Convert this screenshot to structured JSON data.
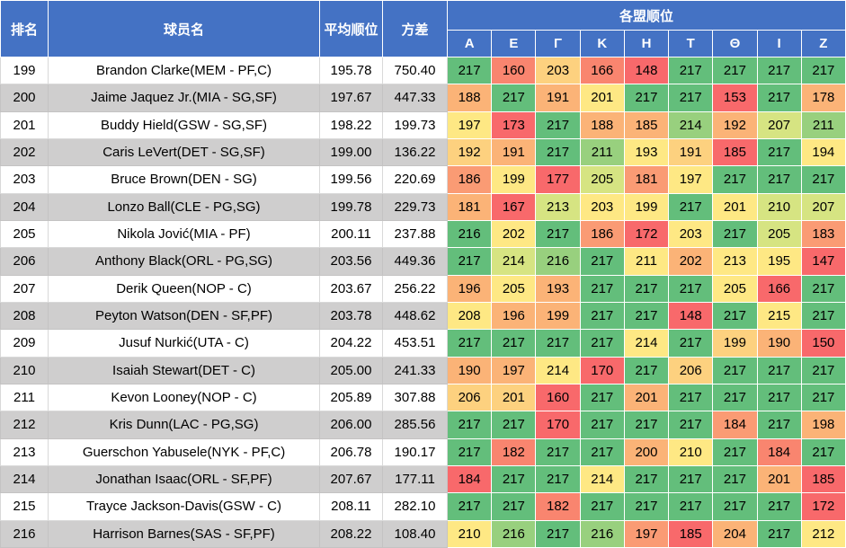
{
  "chart_data": {
    "type": "table",
    "title": "各盟顺位 player ranking heatmap table",
    "header": {
      "rank": "排名",
      "player": "球员名",
      "avg": "平均顺位",
      "variance": "方差",
      "leagues_group": "各盟顺位",
      "leagues": [
        "A",
        "E",
        "Γ",
        "K",
        "H",
        "T",
        "Θ",
        "I",
        "Z"
      ]
    },
    "colors": {
      "header_bg": "#4472C4",
      "header_text": "#FFFFFF",
      "row_bg": "#FFFFFF",
      "row_alt_bg": "#CFCECE",
      "grid_line": "#D9D9D9",
      "heat_border": "#FFFFFF",
      "text": "#000000"
    },
    "palette": {
      "g": "#63BE7B",
      "lg": "#98D07E",
      "yg": "#D6E482",
      "y": "#FEE884",
      "yo": "#FDD17F",
      "o": "#FBB377",
      "do": "#FA9B74",
      "s": "#F9856F",
      "r": "#F8696B"
    },
    "rows": [
      {
        "rank": "199",
        "player": "Brandon Clarke(MEM - PF,C)",
        "avg": "195.78",
        "variance": "750.40",
        "cells": [
          [
            217,
            "g"
          ],
          [
            160,
            "s"
          ],
          [
            203,
            "yo"
          ],
          [
            166,
            "s"
          ],
          [
            148,
            "r"
          ],
          [
            217,
            "g"
          ],
          [
            217,
            "g"
          ],
          [
            217,
            "g"
          ],
          [
            217,
            "g"
          ]
        ]
      },
      {
        "rank": "200",
        "player": "Jaime Jaquez Jr.(MIA - SG,SF)",
        "avg": "197.67",
        "variance": "447.33",
        "cells": [
          [
            188,
            "o"
          ],
          [
            217,
            "g"
          ],
          [
            191,
            "o"
          ],
          [
            201,
            "y"
          ],
          [
            217,
            "g"
          ],
          [
            217,
            "g"
          ],
          [
            153,
            "r"
          ],
          [
            217,
            "g"
          ],
          [
            178,
            "o"
          ]
        ]
      },
      {
        "rank": "201",
        "player": "Buddy Hield(GSW - SG,SF)",
        "avg": "198.22",
        "variance": "199.73",
        "cells": [
          [
            197,
            "y"
          ],
          [
            173,
            "r"
          ],
          [
            217,
            "g"
          ],
          [
            188,
            "o"
          ],
          [
            185,
            "o"
          ],
          [
            214,
            "lg"
          ],
          [
            192,
            "o"
          ],
          [
            207,
            "yg"
          ],
          [
            211,
            "lg"
          ]
        ]
      },
      {
        "rank": "202",
        "player": "Caris LeVert(DET - SG,SF)",
        "avg": "199.00",
        "variance": "136.22",
        "cells": [
          [
            192,
            "yo"
          ],
          [
            191,
            "o"
          ],
          [
            217,
            "g"
          ],
          [
            211,
            "lg"
          ],
          [
            193,
            "y"
          ],
          [
            191,
            "yo"
          ],
          [
            185,
            "r"
          ],
          [
            217,
            "g"
          ],
          [
            194,
            "y"
          ]
        ]
      },
      {
        "rank": "203",
        "player": "Bruce Brown(DEN - SG)",
        "avg": "199.56",
        "variance": "220.69",
        "cells": [
          [
            186,
            "do"
          ],
          [
            199,
            "y"
          ],
          [
            177,
            "r"
          ],
          [
            205,
            "yg"
          ],
          [
            181,
            "do"
          ],
          [
            197,
            "y"
          ],
          [
            217,
            "g"
          ],
          [
            217,
            "g"
          ],
          [
            217,
            "g"
          ]
        ]
      },
      {
        "rank": "204",
        "player": "Lonzo Ball(CLE - PG,SG)",
        "avg": "199.78",
        "variance": "229.73",
        "cells": [
          [
            181,
            "o"
          ],
          [
            167,
            "r"
          ],
          [
            213,
            "yg"
          ],
          [
            203,
            "y"
          ],
          [
            199,
            "y"
          ],
          [
            217,
            "g"
          ],
          [
            201,
            "y"
          ],
          [
            210,
            "yg"
          ],
          [
            207,
            "yg"
          ]
        ]
      },
      {
        "rank": "205",
        "player": "Nikola Jović(MIA - PF)",
        "avg": "200.11",
        "variance": "237.88",
        "cells": [
          [
            216,
            "g"
          ],
          [
            202,
            "y"
          ],
          [
            217,
            "g"
          ],
          [
            186,
            "do"
          ],
          [
            172,
            "r"
          ],
          [
            203,
            "y"
          ],
          [
            217,
            "g"
          ],
          [
            205,
            "yg"
          ],
          [
            183,
            "do"
          ]
        ]
      },
      {
        "rank": "206",
        "player": "Anthony Black(ORL - PG,SG)",
        "avg": "203.56",
        "variance": "449.36",
        "cells": [
          [
            217,
            "g"
          ],
          [
            214,
            "yg"
          ],
          [
            216,
            "lg"
          ],
          [
            217,
            "g"
          ],
          [
            211,
            "y"
          ],
          [
            202,
            "o"
          ],
          [
            213,
            "y"
          ],
          [
            195,
            "y"
          ],
          [
            147,
            "r"
          ]
        ]
      },
      {
        "rank": "207",
        "player": "Derik Queen(NOP - C)",
        "avg": "203.67",
        "variance": "256.22",
        "cells": [
          [
            196,
            "o"
          ],
          [
            205,
            "y"
          ],
          [
            193,
            "o"
          ],
          [
            217,
            "g"
          ],
          [
            217,
            "g"
          ],
          [
            217,
            "g"
          ],
          [
            205,
            "y"
          ],
          [
            166,
            "r"
          ],
          [
            217,
            "g"
          ]
        ]
      },
      {
        "rank": "208",
        "player": "Peyton Watson(DEN - SF,PF)",
        "avg": "203.78",
        "variance": "448.62",
        "cells": [
          [
            208,
            "y"
          ],
          [
            196,
            "o"
          ],
          [
            199,
            "o"
          ],
          [
            217,
            "g"
          ],
          [
            217,
            "g"
          ],
          [
            148,
            "r"
          ],
          [
            217,
            "g"
          ],
          [
            215,
            "y"
          ],
          [
            217,
            "g"
          ]
        ]
      },
      {
        "rank": "209",
        "player": "Jusuf Nurkić(UTA - C)",
        "avg": "204.22",
        "variance": "453.51",
        "cells": [
          [
            217,
            "g"
          ],
          [
            217,
            "g"
          ],
          [
            217,
            "g"
          ],
          [
            217,
            "g"
          ],
          [
            214,
            "y"
          ],
          [
            217,
            "g"
          ],
          [
            199,
            "yo"
          ],
          [
            190,
            "o"
          ],
          [
            150,
            "r"
          ]
        ]
      },
      {
        "rank": "210",
        "player": "Isaiah Stewart(DET - C)",
        "avg": "205.00",
        "variance": "241.33",
        "cells": [
          [
            190,
            "o"
          ],
          [
            197,
            "o"
          ],
          [
            214,
            "y"
          ],
          [
            170,
            "r"
          ],
          [
            217,
            "g"
          ],
          [
            206,
            "yo"
          ],
          [
            217,
            "g"
          ],
          [
            217,
            "g"
          ],
          [
            217,
            "g"
          ]
        ]
      },
      {
        "rank": "211",
        "player": "Kevon Looney(NOP - C)",
        "avg": "205.89",
        "variance": "307.88",
        "cells": [
          [
            206,
            "yo"
          ],
          [
            201,
            "yo"
          ],
          [
            160,
            "r"
          ],
          [
            217,
            "g"
          ],
          [
            201,
            "o"
          ],
          [
            217,
            "g"
          ],
          [
            217,
            "g"
          ],
          [
            217,
            "g"
          ],
          [
            217,
            "g"
          ]
        ]
      },
      {
        "rank": "212",
        "player": "Kris Dunn(LAC - PG,SG)",
        "avg": "206.00",
        "variance": "285.56",
        "cells": [
          [
            217,
            "g"
          ],
          [
            217,
            "g"
          ],
          [
            170,
            "r"
          ],
          [
            217,
            "g"
          ],
          [
            217,
            "g"
          ],
          [
            217,
            "g"
          ],
          [
            184,
            "do"
          ],
          [
            217,
            "g"
          ],
          [
            198,
            "o"
          ]
        ]
      },
      {
        "rank": "213",
        "player": "Guerschon Yabusele(NYK - PF,C)",
        "avg": "206.78",
        "variance": "190.17",
        "cells": [
          [
            217,
            "g"
          ],
          [
            182,
            "s"
          ],
          [
            217,
            "g"
          ],
          [
            217,
            "g"
          ],
          [
            200,
            "o"
          ],
          [
            210,
            "y"
          ],
          [
            217,
            "g"
          ],
          [
            184,
            "s"
          ],
          [
            217,
            "g"
          ]
        ]
      },
      {
        "rank": "214",
        "player": "Jonathan Isaac(ORL - SF,PF)",
        "avg": "207.67",
        "variance": "177.11",
        "cells": [
          [
            184,
            "r"
          ],
          [
            217,
            "g"
          ],
          [
            217,
            "g"
          ],
          [
            214,
            "y"
          ],
          [
            217,
            "g"
          ],
          [
            217,
            "g"
          ],
          [
            217,
            "g"
          ],
          [
            201,
            "o"
          ],
          [
            185,
            "r"
          ]
        ]
      },
      {
        "rank": "215",
        "player": "Trayce Jackson-Davis(GSW - C)",
        "avg": "208.11",
        "variance": "282.10",
        "cells": [
          [
            217,
            "g"
          ],
          [
            217,
            "g"
          ],
          [
            182,
            "s"
          ],
          [
            217,
            "g"
          ],
          [
            217,
            "g"
          ],
          [
            217,
            "g"
          ],
          [
            217,
            "g"
          ],
          [
            217,
            "g"
          ],
          [
            172,
            "r"
          ]
        ]
      },
      {
        "rank": "216",
        "player": "Harrison Barnes(SAS - SF,PF)",
        "avg": "208.22",
        "variance": "108.40",
        "cells": [
          [
            210,
            "y"
          ],
          [
            216,
            "lg"
          ],
          [
            217,
            "g"
          ],
          [
            216,
            "lg"
          ],
          [
            197,
            "do"
          ],
          [
            185,
            "r"
          ],
          [
            204,
            "o"
          ],
          [
            217,
            "g"
          ],
          [
            212,
            "y"
          ]
        ]
      }
    ]
  }
}
